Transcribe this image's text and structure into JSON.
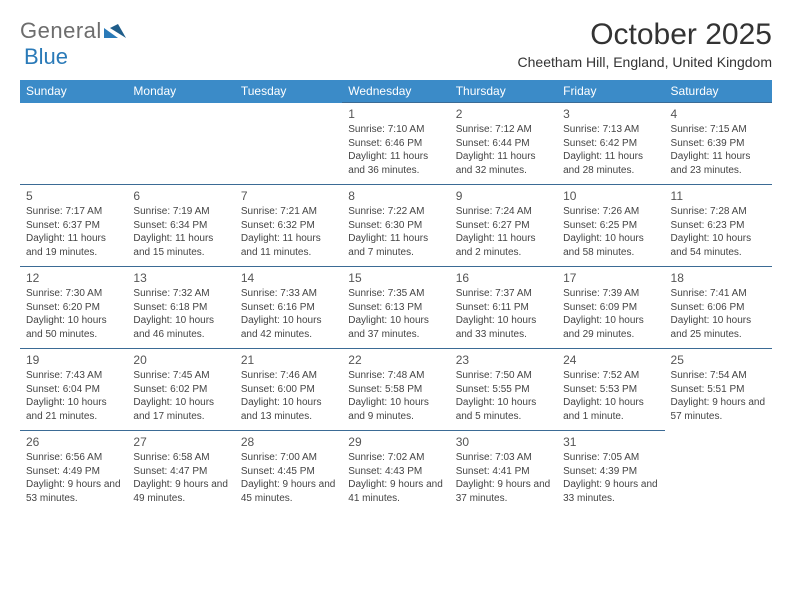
{
  "brand": {
    "part1": "General",
    "part2": "Blue"
  },
  "title": "October 2025",
  "location": "Cheetham Hill, England, United Kingdom",
  "colors": {
    "header_bg": "#3b8bc8",
    "header_text": "#ffffff",
    "row_border": "#3b6b95",
    "logo_gray": "#6d6d6d",
    "logo_blue": "#2a7ab8"
  },
  "day_headers": [
    "Sunday",
    "Monday",
    "Tuesday",
    "Wednesday",
    "Thursday",
    "Friday",
    "Saturday"
  ],
  "weeks": [
    [
      null,
      null,
      null,
      {
        "n": "1",
        "sr": "Sunrise: 7:10 AM",
        "ss": "Sunset: 6:46 PM",
        "dl": "Daylight: 11 hours and 36 minutes."
      },
      {
        "n": "2",
        "sr": "Sunrise: 7:12 AM",
        "ss": "Sunset: 6:44 PM",
        "dl": "Daylight: 11 hours and 32 minutes."
      },
      {
        "n": "3",
        "sr": "Sunrise: 7:13 AM",
        "ss": "Sunset: 6:42 PM",
        "dl": "Daylight: 11 hours and 28 minutes."
      },
      {
        "n": "4",
        "sr": "Sunrise: 7:15 AM",
        "ss": "Sunset: 6:39 PM",
        "dl": "Daylight: 11 hours and 23 minutes."
      }
    ],
    [
      {
        "n": "5",
        "sr": "Sunrise: 7:17 AM",
        "ss": "Sunset: 6:37 PM",
        "dl": "Daylight: 11 hours and 19 minutes."
      },
      {
        "n": "6",
        "sr": "Sunrise: 7:19 AM",
        "ss": "Sunset: 6:34 PM",
        "dl": "Daylight: 11 hours and 15 minutes."
      },
      {
        "n": "7",
        "sr": "Sunrise: 7:21 AM",
        "ss": "Sunset: 6:32 PM",
        "dl": "Daylight: 11 hours and 11 minutes."
      },
      {
        "n": "8",
        "sr": "Sunrise: 7:22 AM",
        "ss": "Sunset: 6:30 PM",
        "dl": "Daylight: 11 hours and 7 minutes."
      },
      {
        "n": "9",
        "sr": "Sunrise: 7:24 AM",
        "ss": "Sunset: 6:27 PM",
        "dl": "Daylight: 11 hours and 2 minutes."
      },
      {
        "n": "10",
        "sr": "Sunrise: 7:26 AM",
        "ss": "Sunset: 6:25 PM",
        "dl": "Daylight: 10 hours and 58 minutes."
      },
      {
        "n": "11",
        "sr": "Sunrise: 7:28 AM",
        "ss": "Sunset: 6:23 PM",
        "dl": "Daylight: 10 hours and 54 minutes."
      }
    ],
    [
      {
        "n": "12",
        "sr": "Sunrise: 7:30 AM",
        "ss": "Sunset: 6:20 PM",
        "dl": "Daylight: 10 hours and 50 minutes."
      },
      {
        "n": "13",
        "sr": "Sunrise: 7:32 AM",
        "ss": "Sunset: 6:18 PM",
        "dl": "Daylight: 10 hours and 46 minutes."
      },
      {
        "n": "14",
        "sr": "Sunrise: 7:33 AM",
        "ss": "Sunset: 6:16 PM",
        "dl": "Daylight: 10 hours and 42 minutes."
      },
      {
        "n": "15",
        "sr": "Sunrise: 7:35 AM",
        "ss": "Sunset: 6:13 PM",
        "dl": "Daylight: 10 hours and 37 minutes."
      },
      {
        "n": "16",
        "sr": "Sunrise: 7:37 AM",
        "ss": "Sunset: 6:11 PM",
        "dl": "Daylight: 10 hours and 33 minutes."
      },
      {
        "n": "17",
        "sr": "Sunrise: 7:39 AM",
        "ss": "Sunset: 6:09 PM",
        "dl": "Daylight: 10 hours and 29 minutes."
      },
      {
        "n": "18",
        "sr": "Sunrise: 7:41 AM",
        "ss": "Sunset: 6:06 PM",
        "dl": "Daylight: 10 hours and 25 minutes."
      }
    ],
    [
      {
        "n": "19",
        "sr": "Sunrise: 7:43 AM",
        "ss": "Sunset: 6:04 PM",
        "dl": "Daylight: 10 hours and 21 minutes."
      },
      {
        "n": "20",
        "sr": "Sunrise: 7:45 AM",
        "ss": "Sunset: 6:02 PM",
        "dl": "Daylight: 10 hours and 17 minutes."
      },
      {
        "n": "21",
        "sr": "Sunrise: 7:46 AM",
        "ss": "Sunset: 6:00 PM",
        "dl": "Daylight: 10 hours and 13 minutes."
      },
      {
        "n": "22",
        "sr": "Sunrise: 7:48 AM",
        "ss": "Sunset: 5:58 PM",
        "dl": "Daylight: 10 hours and 9 minutes."
      },
      {
        "n": "23",
        "sr": "Sunrise: 7:50 AM",
        "ss": "Sunset: 5:55 PM",
        "dl": "Daylight: 10 hours and 5 minutes."
      },
      {
        "n": "24",
        "sr": "Sunrise: 7:52 AM",
        "ss": "Sunset: 5:53 PM",
        "dl": "Daylight: 10 hours and 1 minute."
      },
      {
        "n": "25",
        "sr": "Sunrise: 7:54 AM",
        "ss": "Sunset: 5:51 PM",
        "dl": "Daylight: 9 hours and 57 minutes."
      }
    ],
    [
      {
        "n": "26",
        "sr": "Sunrise: 6:56 AM",
        "ss": "Sunset: 4:49 PM",
        "dl": "Daylight: 9 hours and 53 minutes."
      },
      {
        "n": "27",
        "sr": "Sunrise: 6:58 AM",
        "ss": "Sunset: 4:47 PM",
        "dl": "Daylight: 9 hours and 49 minutes."
      },
      {
        "n": "28",
        "sr": "Sunrise: 7:00 AM",
        "ss": "Sunset: 4:45 PM",
        "dl": "Daylight: 9 hours and 45 minutes."
      },
      {
        "n": "29",
        "sr": "Sunrise: 7:02 AM",
        "ss": "Sunset: 4:43 PM",
        "dl": "Daylight: 9 hours and 41 minutes."
      },
      {
        "n": "30",
        "sr": "Sunrise: 7:03 AM",
        "ss": "Sunset: 4:41 PM",
        "dl": "Daylight: 9 hours and 37 minutes."
      },
      {
        "n": "31",
        "sr": "Sunrise: 7:05 AM",
        "ss": "Sunset: 4:39 PM",
        "dl": "Daylight: 9 hours and 33 minutes."
      },
      null
    ]
  ]
}
